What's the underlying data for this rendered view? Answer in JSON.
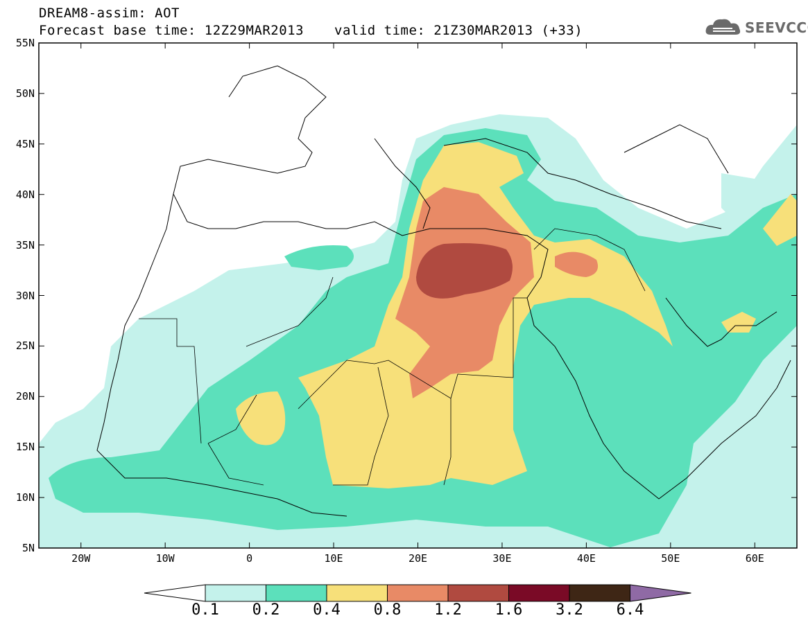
{
  "header": {
    "title": "DREAM8-assim: AOT",
    "base_time": "Forecast base time: 12Z29MAR2013",
    "valid_time": "valid time: 21Z30MAR2013 (+33)",
    "logo_text": "SEEVCCC"
  },
  "map": {
    "lat_labels": [
      "55N",
      "50N",
      "45N",
      "40N",
      "35N",
      "30N",
      "25N",
      "20N",
      "15N",
      "10N",
      "5N"
    ],
    "lon_labels": [
      "20W",
      "10W",
      "0",
      "10E",
      "20E",
      "30E",
      "40E",
      "50E",
      "60E"
    ],
    "extent": {
      "lon_min": -25,
      "lon_max": 65,
      "lat_min": 5,
      "lat_max": 55
    }
  },
  "colorbar": {
    "levels": [
      "0.1",
      "0.2",
      "0.4",
      "0.8",
      "1.2",
      "1.6",
      "3.2",
      "6.4"
    ],
    "colors": [
      "#ffffff",
      "#c4f2eb",
      "#5ce0bb",
      "#f7e07a",
      "#e88a66",
      "#b04a40",
      "#7a0a26",
      "#3e2615",
      "#8f6aa5"
    ]
  }
}
